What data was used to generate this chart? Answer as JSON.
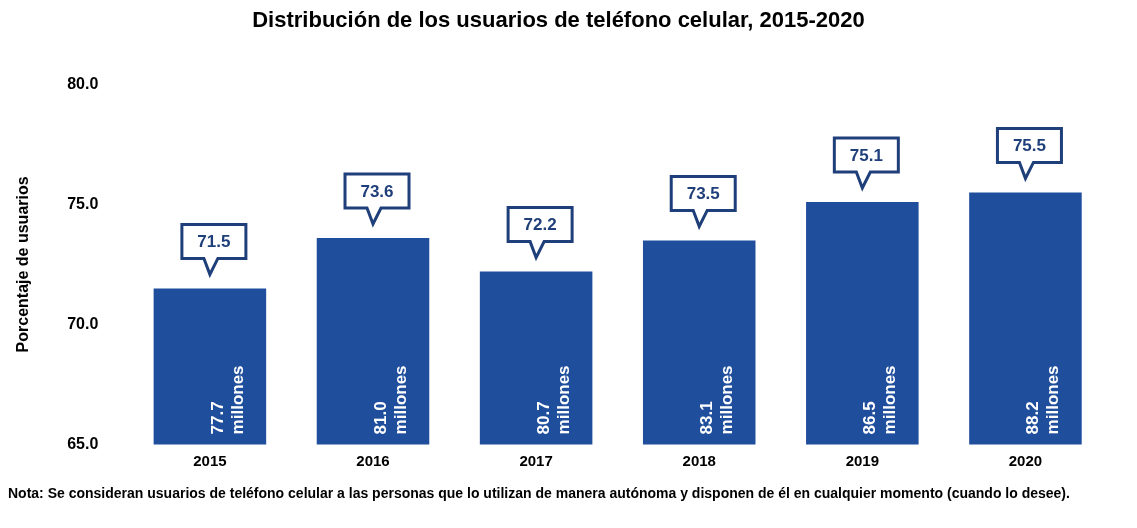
{
  "chart_data": {
    "type": "bar",
    "title": "Distribución de los usuarios de teléfono celular, 2015-2020",
    "ylabel": "Porcentaje de usuarios",
    "categories": [
      "2015",
      "2016",
      "2017",
      "2018",
      "2019",
      "2020"
    ],
    "values": [
      71.5,
      73.6,
      72.2,
      73.5,
      75.1,
      75.5
    ],
    "color": "#1f4e9c",
    "data_labels": true,
    "ylim": [
      65,
      80
    ],
    "yticks": [
      {
        "value": 65,
        "label": "65.0"
      },
      {
        "value": 70,
        "label": "70.0"
      },
      {
        "value": 75,
        "label": "75.0"
      },
      {
        "value": 80,
        "label": "80.0"
      }
    ],
    "grid": false,
    "annotations": [
      "77.7 millones",
      "81.0 millones",
      "80.7 millones",
      "83.1 millones",
      "86.5 millones",
      "88.2 millones",
      "Nota: Se consideran usuarios de teléfono celular a las personas que lo utilizan de manera autónoma y disponen de él en cualquier momento (cuando lo desee)."
    ]
  }
}
